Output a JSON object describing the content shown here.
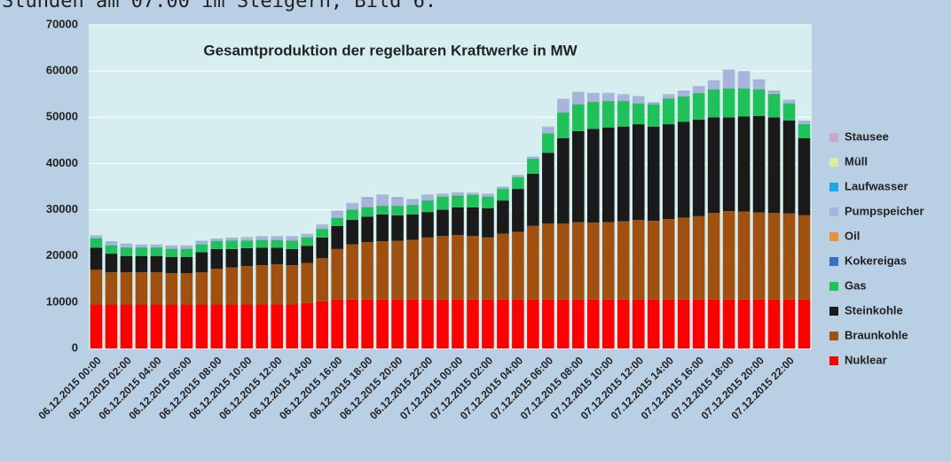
{
  "chart_data": {
    "type": "stacked_bar",
    "title": "Gesamtproduktion der regelbaren Kraftwerke in MW",
    "annotations": [
      "Stunden am 07.00 im Steigern, Bild 6:"
    ],
    "categories": [
      "06.12.2015 00:00",
      null,
      "06.12.2015 02:00",
      null,
      "06.12.2015 04:00",
      null,
      "06.12.2015 06:00",
      null,
      "06.12.2015 08:00",
      null,
      "06.12.2015 10:00",
      null,
      "06.12.2015 12:00",
      null,
      "06.12.2015 14:00",
      null,
      "06.12.2015 16:00",
      null,
      "06.12.2015 18:00",
      null,
      "06.12.2015 20:00",
      null,
      "06.12.2015 22:00",
      null,
      "07.12.2015 00:00",
      null,
      "07.12.2015 02:00",
      null,
      "07.12.2015 04:00",
      null,
      "07.12.2015 06:00",
      null,
      "07.12.2015 08:00",
      null,
      "07.12.2015 10:00",
      null,
      "07.12.2015 12:00",
      null,
      "07.12.2015 14:00",
      null,
      "07.12.2015 16:00",
      null,
      "07.12.2015 18:00",
      null,
      "07.12.2015 20:00",
      null,
      "07.12.2015 22:00",
      null
    ],
    "series": [
      {
        "name": "Nuklear",
        "color": "#ff0000",
        "values": [
          9500,
          9500,
          9500,
          9500,
          9500,
          9500,
          9500,
          9500,
          9500,
          9500,
          9500,
          9500,
          9500,
          9500,
          9800,
          10200,
          10600,
          10600,
          10600,
          10600,
          10600,
          10600,
          10600,
          10600,
          10600,
          10600,
          10600,
          10600,
          10600,
          10600,
          10600,
          10600,
          10600,
          10600,
          10600,
          10600,
          10600,
          10600,
          10600,
          10600,
          10600,
          10600,
          10600,
          10600,
          10600,
          10600,
          10600,
          10600
        ]
      },
      {
        "name": "Braunkohle",
        "color": "#a0500f",
        "values": [
          7500,
          7000,
          7000,
          7000,
          7000,
          6800,
          6800,
          7000,
          7700,
          8000,
          8300,
          8500,
          8700,
          8500,
          8700,
          9300,
          10900,
          11900,
          12400,
          12600,
          12700,
          12900,
          13400,
          13700,
          13900,
          13700,
          13400,
          14200,
          14600,
          15900,
          16400,
          16400,
          16700,
          16600,
          16700,
          16900,
          17200,
          17000,
          17400,
          17700,
          18000,
          18700,
          19100,
          19000,
          18800,
          18700,
          18600,
          18200
        ]
      },
      {
        "name": "Steinkohle",
        "color": "#1a1a1a",
        "values": [
          4800,
          4000,
          3500,
          3500,
          3500,
          3500,
          3500,
          4300,
          4300,
          4000,
          3900,
          3800,
          3600,
          3500,
          3700,
          4500,
          5000,
          5300,
          5500,
          5800,
          5500,
          5500,
          5500,
          5700,
          6000,
          6200,
          6300,
          7200,
          9300,
          11300,
          15300,
          18500,
          19700,
          20300,
          20500,
          20500,
          20700,
          20400,
          20500,
          20700,
          20900,
          20700,
          20300,
          20600,
          20900,
          20700,
          20100,
          16700
        ]
      },
      {
        "name": "Gas",
        "color": "#1fc25a",
        "values": [
          2000,
          1800,
          1800,
          1800,
          1800,
          1700,
          1700,
          1700,
          1700,
          1800,
          1600,
          1600,
          1600,
          1800,
          1800,
          1800,
          1700,
          2200,
          2000,
          1800,
          2000,
          2000,
          2500,
          2800,
          2500,
          2700,
          2500,
          2500,
          2500,
          3200,
          4200,
          5500,
          5800,
          5800,
          5700,
          5500,
          4500,
          4800,
          5500,
          5500,
          5700,
          6000,
          6200,
          6000,
          5700,
          5000,
          3700,
          3000
        ]
      },
      {
        "name": "Kokereigas",
        "color": "#3a70c0",
        "values": [
          50,
          50,
          50,
          50,
          50,
          50,
          50,
          50,
          50,
          50,
          50,
          50,
          50,
          50,
          50,
          50,
          50,
          50,
          50,
          50,
          50,
          50,
          50,
          50,
          50,
          50,
          50,
          50,
          50,
          50,
          50,
          50,
          50,
          50,
          50,
          50,
          50,
          50,
          50,
          50,
          50,
          50,
          50,
          50,
          50,
          50,
          50,
          50
        ]
      },
      {
        "name": "Oil",
        "color": "#e8903a",
        "values": [
          30,
          30,
          30,
          30,
          30,
          30,
          30,
          30,
          30,
          30,
          30,
          30,
          30,
          30,
          30,
          30,
          30,
          30,
          30,
          30,
          30,
          30,
          30,
          30,
          30,
          30,
          30,
          30,
          30,
          30,
          30,
          30,
          30,
          30,
          30,
          30,
          30,
          30,
          30,
          30,
          30,
          30,
          30,
          30,
          30,
          30,
          30,
          30
        ]
      },
      {
        "name": "Pumpspeicher",
        "color": "#a9b4dc",
        "values": [
          350,
          550,
          550,
          350,
          350,
          450,
          450,
          450,
          250,
          350,
          450,
          550,
          550,
          650,
          450,
          650,
          1250,
          1150,
          1950,
          2150,
          1650,
          950,
          950,
          350,
          450,
          150,
          350,
          150,
          150,
          150,
          1150,
          2650,
          2350,
          1650,
          1450,
          1150,
          1250,
          150,
          650,
          950,
          1250,
          1650,
          3750,
          3450,
          1850,
          450,
          450,
          450
        ]
      },
      {
        "name": "Laufwasser",
        "color": "#1aa8e8",
        "values": [
          80,
          80,
          80,
          80,
          80,
          80,
          80,
          80,
          80,
          80,
          80,
          80,
          80,
          80,
          80,
          80,
          80,
          80,
          80,
          80,
          80,
          80,
          80,
          80,
          80,
          80,
          80,
          80,
          80,
          80,
          80,
          80,
          80,
          80,
          80,
          80,
          80,
          80,
          80,
          80,
          80,
          80,
          80,
          80,
          80,
          80,
          80,
          80
        ]
      },
      {
        "name": "Müll",
        "color": "#dde8a0",
        "values": [
          40,
          40,
          40,
          40,
          40,
          40,
          40,
          40,
          40,
          40,
          40,
          40,
          40,
          40,
          40,
          40,
          40,
          40,
          40,
          40,
          40,
          40,
          40,
          40,
          40,
          40,
          40,
          40,
          40,
          40,
          40,
          40,
          40,
          40,
          40,
          40,
          40,
          40,
          40,
          40,
          40,
          40,
          40,
          40,
          40,
          40,
          40,
          40
        ]
      },
      {
        "name": "Stausee",
        "color": "#c9a7c9",
        "values": [
          150,
          150,
          150,
          150,
          150,
          150,
          150,
          150,
          150,
          150,
          150,
          150,
          150,
          150,
          150,
          150,
          150,
          150,
          150,
          150,
          150,
          150,
          150,
          150,
          150,
          150,
          150,
          150,
          150,
          150,
          150,
          150,
          150,
          150,
          150,
          150,
          150,
          150,
          150,
          150,
          150,
          150,
          150,
          150,
          150,
          150,
          150,
          150
        ]
      }
    ],
    "ylim": [
      0,
      70000
    ],
    "yticks": [
      0,
      10000,
      20000,
      30000,
      40000,
      50000,
      60000,
      70000
    ],
    "grid": true
  }
}
